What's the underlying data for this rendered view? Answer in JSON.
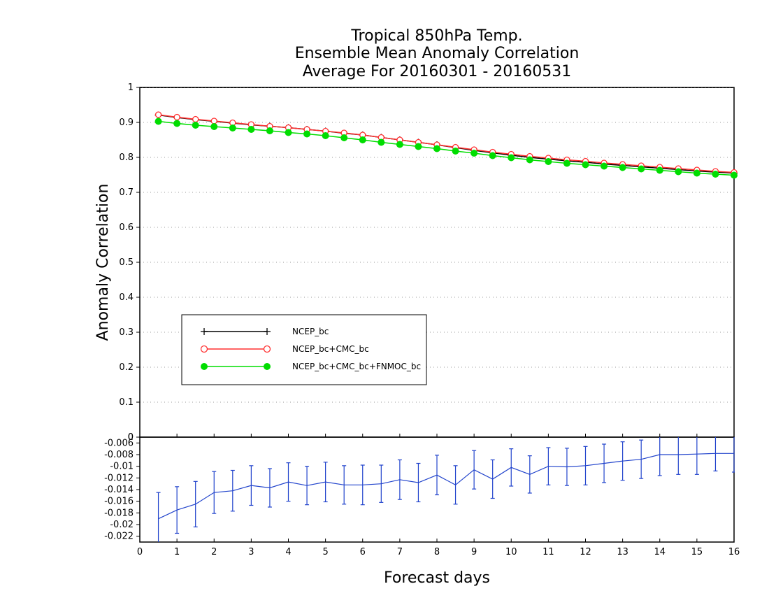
{
  "chart_data": [
    {
      "type": "line",
      "title": [
        "Tropical 850hPa Temp.",
        "Ensemble Mean Anomaly Correlation",
        "Average For 20160301 - 20160531"
      ],
      "xlabel": "Forecast days",
      "ylabel": "Anomaly Correlation",
      "xlim": [
        0,
        16
      ],
      "ylim": [
        0,
        1
      ],
      "x_ticks": [
        "0",
        "1",
        "2",
        "3",
        "4",
        "5",
        "6",
        "7",
        "8",
        "9",
        "10",
        "11",
        "12",
        "13",
        "14",
        "15",
        "16"
      ],
      "y_ticks": [
        "0",
        "0.1",
        "0.2",
        "0.3",
        "0.4",
        "0.5",
        "0.6",
        "0.7",
        "0.8",
        "0.9",
        "1"
      ],
      "grid": true,
      "legend_position": "center-left",
      "x": [
        0.5,
        1,
        1.5,
        2,
        2.5,
        3,
        3.5,
        4,
        4.5,
        5,
        5.5,
        6,
        6.5,
        7,
        7.5,
        8,
        8.5,
        9,
        9.5,
        10,
        10.5,
        11,
        11.5,
        12,
        12.5,
        13,
        13.5,
        14,
        14.5,
        15,
        15.5,
        16
      ],
      "series": [
        {
          "name": "NCEP_bc",
          "color": "#000000",
          "marker": "plus",
          "values": [
            0.921,
            0.914,
            0.908,
            0.903,
            0.898,
            0.893,
            0.889,
            0.885,
            0.88,
            0.875,
            0.869,
            0.864,
            0.857,
            0.85,
            0.843,
            0.836,
            0.828,
            0.82,
            0.813,
            0.806,
            0.8,
            0.795,
            0.79,
            0.786,
            0.781,
            0.777,
            0.773,
            0.769,
            0.765,
            0.761,
            0.758,
            0.755
          ]
        },
        {
          "name": "NCEP_bc+CMC_bc",
          "color": "#ff3030",
          "marker": "open-circle",
          "values": [
            0.922,
            0.915,
            0.909,
            0.904,
            0.899,
            0.894,
            0.889,
            0.885,
            0.88,
            0.875,
            0.87,
            0.864,
            0.857,
            0.85,
            0.843,
            0.836,
            0.829,
            0.822,
            0.815,
            0.809,
            0.803,
            0.798,
            0.793,
            0.789,
            0.784,
            0.78,
            0.776,
            0.772,
            0.768,
            0.764,
            0.76,
            0.757
          ]
        },
        {
          "name": "NCEP_bc+CMC_bc+FNMOC_bc",
          "color": "#00dd00",
          "marker": "filled-circle",
          "values": [
            0.903,
            0.897,
            0.892,
            0.888,
            0.884,
            0.88,
            0.876,
            0.871,
            0.867,
            0.862,
            0.856,
            0.85,
            0.843,
            0.837,
            0.831,
            0.825,
            0.818,
            0.812,
            0.805,
            0.799,
            0.793,
            0.788,
            0.783,
            0.779,
            0.775,
            0.771,
            0.767,
            0.763,
            0.759,
            0.755,
            0.752,
            0.749
          ]
        }
      ]
    },
    {
      "type": "line",
      "xlim": [
        0,
        16
      ],
      "ylim": [
        -0.023,
        -0.005
      ],
      "x_ticks": [
        "0",
        "1",
        "2",
        "3",
        "4",
        "5",
        "6",
        "7",
        "8",
        "9",
        "10",
        "11",
        "12",
        "13",
        "14",
        "15",
        "16"
      ],
      "y_ticks": [
        "-0.006",
        "-0.008",
        "-0.01",
        "-0.012",
        "-0.014",
        "-0.016",
        "-0.018",
        "-0.02",
        "-0.022"
      ],
      "zero_line_label": "0",
      "x": [
        0.5,
        1,
        1.5,
        2,
        2.5,
        3,
        3.5,
        4,
        4.5,
        5,
        5.5,
        6,
        6.5,
        7,
        7.5,
        8,
        8.5,
        9,
        9.5,
        10,
        10.5,
        11,
        11.5,
        12,
        12.5,
        13,
        13.5,
        14,
        14.5,
        15,
        15.5,
        16
      ],
      "series": [
        {
          "color": "#2244cc",
          "error_bars": true,
          "values": [
            -0.019,
            -0.0175,
            -0.0165,
            -0.0145,
            -0.0142,
            -0.0133,
            -0.0137,
            -0.0127,
            -0.0133,
            -0.0127,
            -0.0132,
            -0.0132,
            -0.013,
            -0.0123,
            -0.0128,
            -0.0115,
            -0.0132,
            -0.0106,
            -0.0122,
            -0.0102,
            -0.0114,
            -0.01,
            -0.0101,
            -0.0099,
            -0.0095,
            -0.0091,
            -0.0088,
            -0.008,
            -0.008,
            -0.0079,
            -0.0078,
            -0.0078
          ],
          "errors": [
            0.0045,
            0.004,
            0.0039,
            0.0036,
            0.0035,
            0.0034,
            0.0033,
            0.0033,
            0.0033,
            0.0034,
            0.0033,
            0.0034,
            0.0032,
            0.0034,
            0.0033,
            0.0034,
            0.0033,
            0.0033,
            0.0033,
            0.0032,
            0.0032,
            0.0032,
            0.0032,
            0.0033,
            0.0033,
            0.0033,
            0.0033,
            0.0036,
            0.0034,
            0.0035,
            0.003,
            0.0032
          ]
        }
      ]
    }
  ]
}
